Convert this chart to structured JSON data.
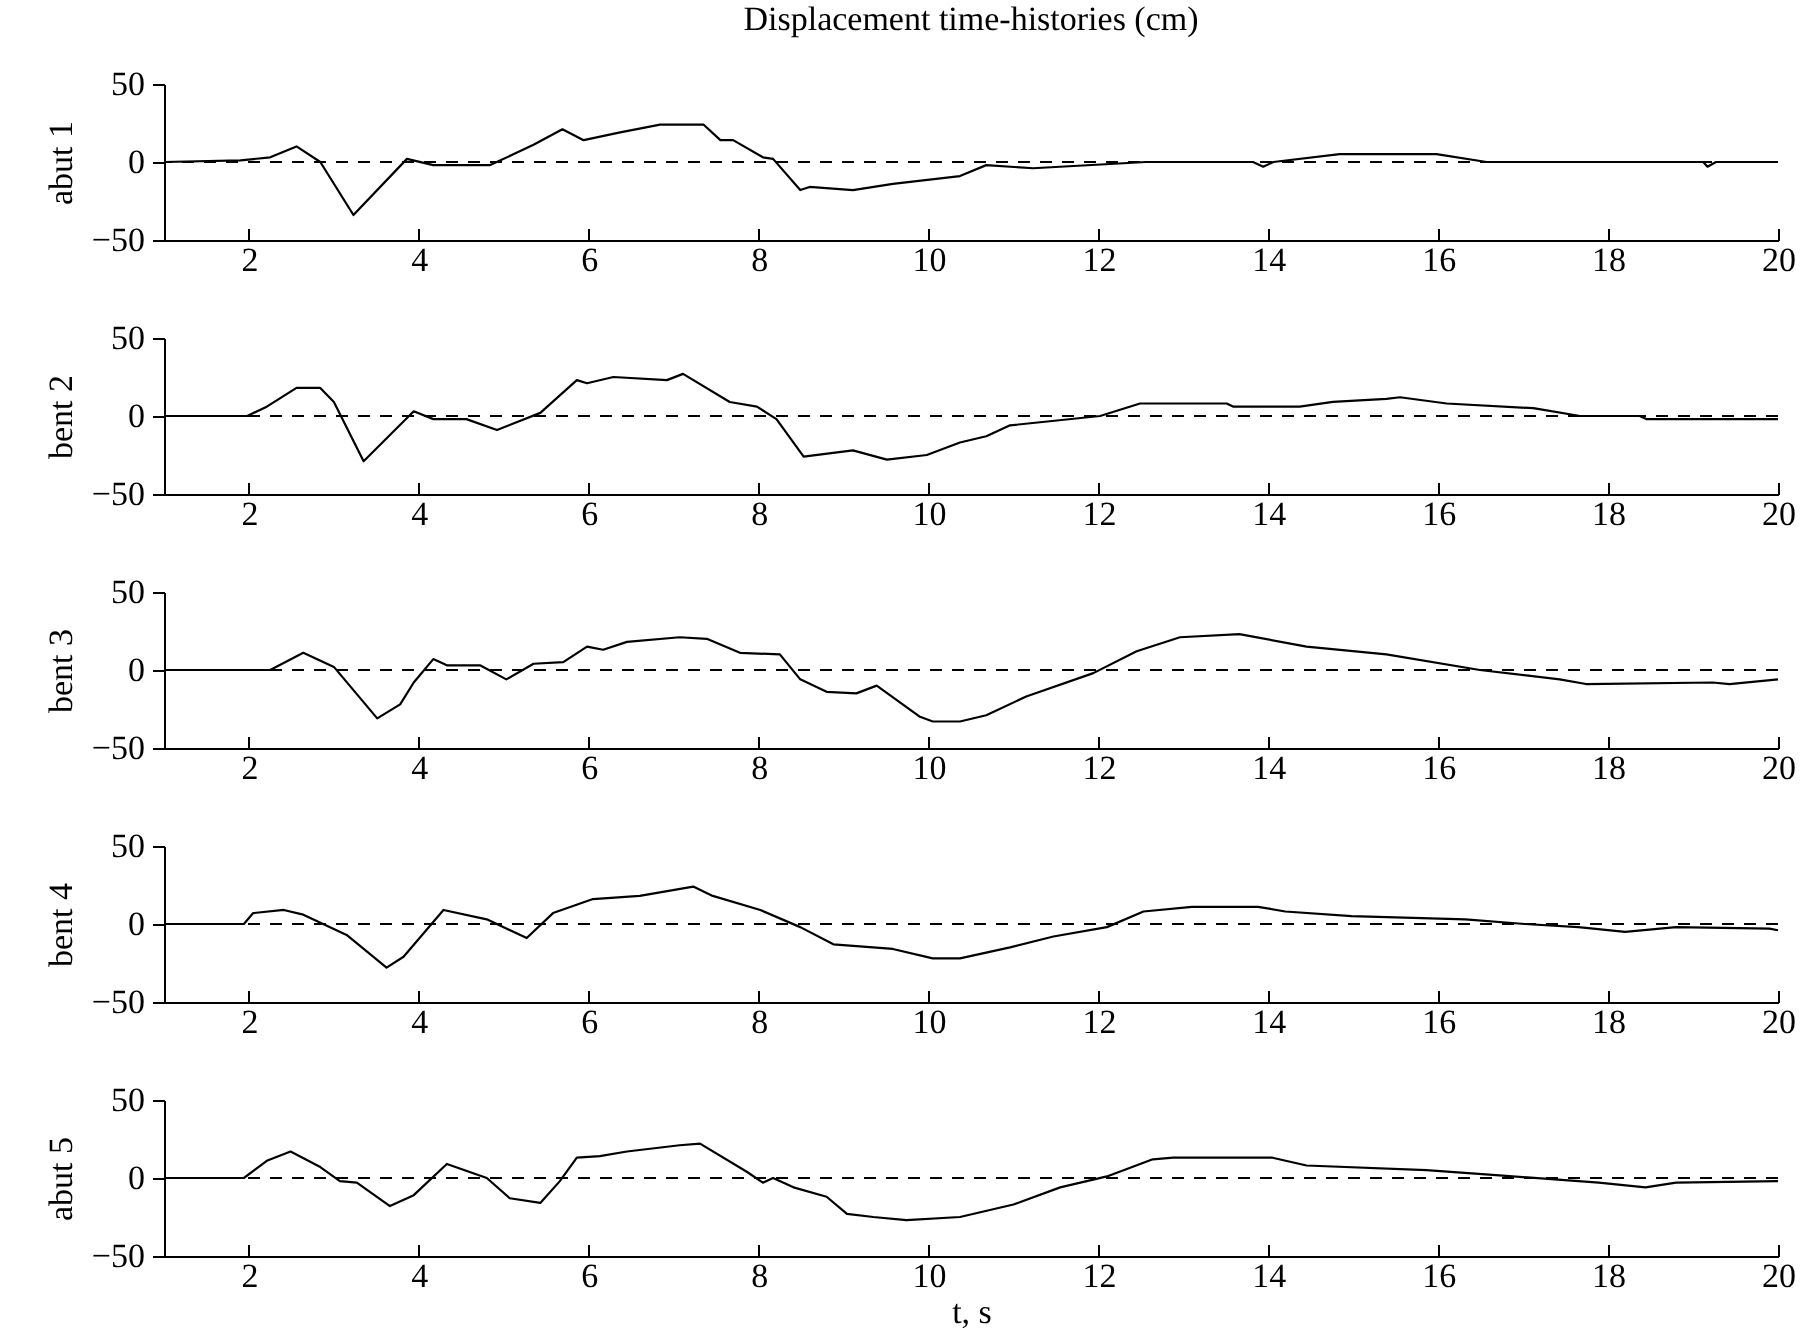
{
  "chart_data": [
    {
      "type": "line",
      "title": "Displacement time-histories (cm)",
      "ylabel": "abut 1",
      "xlim": [
        1,
        20
      ],
      "xticks": [
        2,
        4,
        6,
        8,
        10,
        12,
        14,
        16,
        18,
        20
      ],
      "ylim": [
        -50,
        50
      ],
      "yticks": [
        -50,
        0,
        50
      ],
      "line_style": "solid",
      "ref_lines": [
        {
          "axis": "y",
          "value": 0,
          "line_style": "dashed",
          "color": "#000000"
        }
      ],
      "x": [
        1,
        1.9,
        2.25,
        2.56,
        2.84,
        3.23,
        3.86,
        4.17,
        4.84,
        5.35,
        5.69,
        5.94,
        6.37,
        6.84,
        7.35,
        7.55,
        7.7,
        8.05,
        8.17,
        8.49,
        8.6,
        9.11,
        9.58,
        10.37,
        10.68,
        11.23,
        12.56,
        13.82,
        13.94,
        14.06,
        14.84,
        15.98,
        16.57,
        19.12,
        19.17,
        19.27,
        20
      ],
      "series": [
        {
          "color": "#000000",
          "values": [
            0,
            1,
            3,
            10,
            0,
            -34,
            2,
            -2,
            -2,
            11,
            21,
            14,
            19,
            24,
            24,
            14,
            14,
            3,
            2,
            -18,
            -16,
            -18,
            -14,
            -9,
            -2,
            -4,
            0,
            0,
            -3,
            0,
            5,
            5,
            0,
            0,
            -3,
            0,
            0
          ]
        }
      ]
    },
    {
      "type": "line",
      "ylabel": "bent 2",
      "xlim": [
        1,
        20
      ],
      "xticks": [
        2,
        4,
        6,
        8,
        10,
        12,
        14,
        16,
        18,
        20
      ],
      "ylim": [
        -50,
        50
      ],
      "yticks": [
        -50,
        0,
        50
      ],
      "line_style": "solid",
      "ref_lines": [
        {
          "axis": "y",
          "value": 0,
          "line_style": "dashed",
          "color": "#000000"
        }
      ],
      "x": [
        1,
        1.98,
        2.21,
        2.56,
        2.84,
        3.0,
        3.35,
        3.94,
        4.17,
        4.56,
        4.92,
        5.43,
        5.86,
        5.98,
        6.29,
        6.92,
        7.11,
        7.66,
        7.98,
        8.21,
        8.53,
        9.11,
        9.51,
        9.98,
        10.37,
        10.68,
        10.96,
        12.02,
        12.49,
        13.51,
        13.59,
        14.37,
        14.76,
        15.39,
        15.55,
        16.1,
        17.12,
        17.67,
        18.37,
        18.45,
        20
      ],
      "series": [
        {
          "color": "#000000",
          "values": [
            0,
            0,
            6,
            18,
            18,
            9,
            -29,
            3,
            -2,
            -2,
            -9,
            2,
            23,
            21,
            25,
            23,
            27,
            9,
            6,
            -2,
            -26,
            -22,
            -28,
            -25,
            -17,
            -13,
            -6,
            0,
            8,
            8,
            6,
            6,
            9,
            11,
            12,
            8,
            5,
            0,
            0,
            -2,
            -2
          ]
        }
      ]
    },
    {
      "type": "line",
      "ylabel": "bent 3",
      "xlim": [
        1,
        20
      ],
      "xticks": [
        2,
        4,
        6,
        8,
        10,
        12,
        14,
        16,
        18,
        20
      ],
      "ylim": [
        -50,
        50
      ],
      "yticks": [
        -50,
        0,
        50
      ],
      "line_style": "solid",
      "ref_lines": [
        {
          "axis": "y",
          "value": 0,
          "line_style": "dashed",
          "color": "#000000"
        }
      ],
      "x": [
        1,
        2.25,
        2.64,
        3.0,
        3.51,
        3.78,
        3.94,
        4.17,
        4.33,
        4.72,
        5.03,
        5.35,
        5.7,
        5.98,
        6.17,
        6.45,
        7.07,
        7.39,
        7.78,
        8.25,
        8.49,
        8.8,
        9.15,
        9.39,
        9.9,
        10.05,
        10.37,
        10.68,
        11.15,
        11.94,
        12.45,
        12.96,
        13.66,
        14.45,
        15.39,
        16.49,
        17.43,
        17.74,
        19.23,
        19.43,
        20
      ],
      "series": [
        {
          "color": "#000000",
          "values": [
            0,
            0,
            11,
            2,
            -31,
            -22,
            -8,
            7,
            3,
            3,
            -6,
            4,
            5,
            15,
            13,
            18,
            21,
            20,
            11,
            10,
            -6,
            -14,
            -15,
            -10,
            -30,
            -33,
            -33,
            -29,
            -17,
            -2,
            12,
            21,
            23,
            15,
            10,
            0,
            -6,
            -9,
            -8,
            -9,
            -6
          ]
        }
      ]
    },
    {
      "type": "line",
      "ylabel": "bent 4",
      "xlim": [
        1,
        20
      ],
      "xticks": [
        2,
        4,
        6,
        8,
        10,
        12,
        14,
        16,
        18,
        20
      ],
      "ylim": [
        -50,
        50
      ],
      "yticks": [
        -50,
        0,
        50
      ],
      "line_style": "solid",
      "ref_lines": [
        {
          "axis": "y",
          "value": 0,
          "line_style": "dashed",
          "color": "#000000"
        }
      ],
      "x": [
        1,
        1.94,
        2.05,
        2.41,
        2.64,
        3.15,
        3.62,
        3.82,
        4.29,
        4.8,
        5.27,
        5.58,
        6.05,
        6.6,
        7.23,
        7.46,
        8.02,
        8.49,
        8.88,
        9.58,
        10.05,
        10.37,
        10.96,
        11.47,
        12.1,
        12.53,
        13.1,
        13.88,
        14.2,
        14.98,
        16.32,
        17.02,
        17.65,
        18.2,
        18.8,
        19.9,
        20
      ],
      "series": [
        {
          "color": "#000000",
          "values": [
            0,
            0,
            7,
            9,
            6,
            -7,
            -28,
            -21,
            9,
            3,
            -9,
            7,
            16,
            18,
            24,
            18,
            9,
            -2,
            -13,
            -16,
            -22,
            -22,
            -15,
            -8,
            -2,
            8,
            11,
            11,
            8,
            5,
            3,
            0,
            -2,
            -5,
            -2,
            -3,
            -4
          ]
        }
      ]
    },
    {
      "type": "line",
      "ylabel": "abut 5",
      "xlabel": "t, s",
      "xlim": [
        1,
        20
      ],
      "xticks": [
        2,
        4,
        6,
        8,
        10,
        12,
        14,
        16,
        18,
        20
      ],
      "ylim": [
        -50,
        50
      ],
      "yticks": [
        -50,
        0,
        50
      ],
      "line_style": "solid",
      "ref_lines": [
        {
          "axis": "y",
          "value": 0,
          "line_style": "dashed",
          "color": "#000000"
        }
      ],
      "x": [
        1,
        1.94,
        2.21,
        2.49,
        2.84,
        3.07,
        3.27,
        3.66,
        3.94,
        4.33,
        4.8,
        5.07,
        5.43,
        5.66,
        5.86,
        6.13,
        6.45,
        7.07,
        7.31,
        7.86,
        8.05,
        8.17,
        8.41,
        8.8,
        9.04,
        9.35,
        9.74,
        10.37,
        11.0,
        11.55,
        12.1,
        12.64,
        12.88,
        14.05,
        14.45,
        15.86,
        16.64,
        17.89,
        18.44,
        18.8,
        20
      ],
      "series": [
        {
          "color": "#000000",
          "values": [
            0,
            0,
            11,
            17,
            7,
            -2,
            -3,
            -18,
            -11,
            9,
            0,
            -13,
            -16,
            -2,
            13,
            14,
            17,
            21,
            22,
            4,
            -3,
            0,
            -6,
            -12,
            -23,
            -25,
            -27,
            -25,
            -17,
            -6,
            1,
            12,
            13,
            13,
            8,
            5,
            2,
            -3,
            -6,
            -3,
            -2
          ]
        }
      ]
    }
  ]
}
